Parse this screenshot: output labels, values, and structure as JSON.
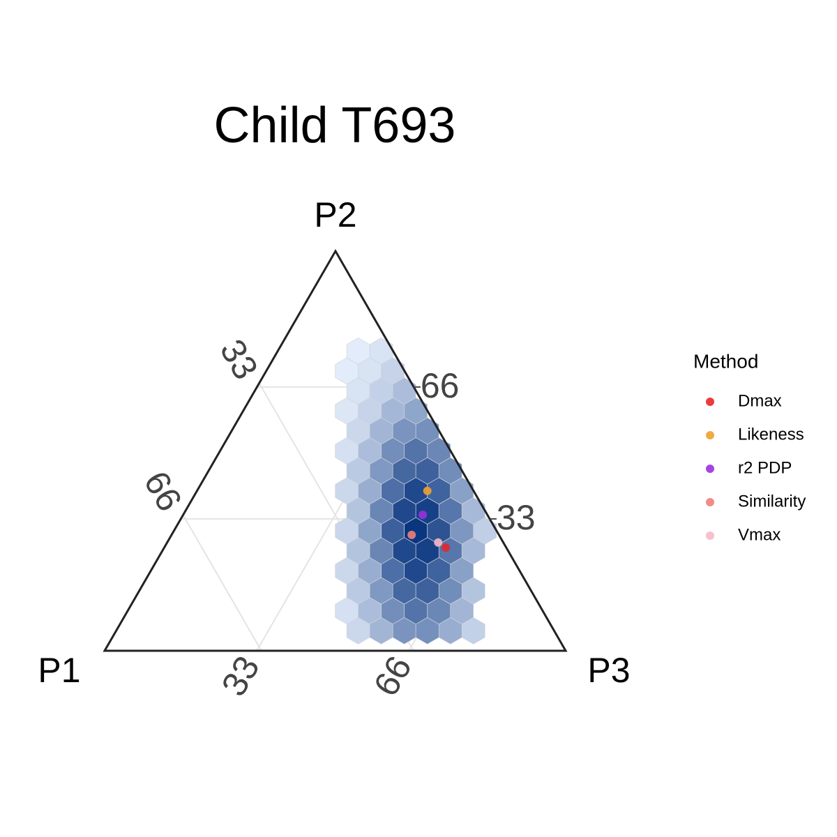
{
  "chart_data": {
    "type": "ternary",
    "title": "Child T693",
    "vertex_labels": [
      "P1",
      "P2",
      "P3"
    ],
    "p1ticks": [
      33,
      66
    ],
    "p2ticks": [
      33,
      66
    ],
    "p3ticks": [
      33,
      66
    ],
    "grid": true,
    "legend_title": "Method",
    "legend_position": "right",
    "hexbins": {
      "p2": [
        5,
        5,
        5,
        5,
        5,
        5,
        10,
        10,
        10,
        10,
        10,
        10,
        15,
        15,
        15,
        15,
        15,
        15,
        20,
        20,
        20,
        20,
        20,
        20,
        25,
        25,
        25,
        25,
        25,
        25,
        30,
        30,
        30,
        30,
        30,
        30,
        30,
        35,
        35,
        35,
        35,
        35,
        35,
        40,
        40,
        40,
        40,
        40,
        40,
        45,
        45,
        45,
        45,
        45,
        50,
        50,
        50,
        50,
        50,
        55,
        55,
        55,
        55,
        60,
        60,
        60,
        60,
        65,
        65,
        65,
        70,
        70,
        70,
        75,
        75
      ],
      "p3": [
        52.5,
        57.5,
        62.5,
        67.5,
        72.5,
        77.5,
        47.5,
        52.5,
        57.5,
        62.5,
        67.5,
        72.5,
        47.5,
        52.5,
        57.5,
        62.5,
        67.5,
        72.5,
        42.5,
        47.5,
        52.5,
        57.5,
        62.5,
        67.5,
        42.5,
        47.5,
        52.5,
        57.5,
        62.5,
        67.5,
        37.5,
        42.5,
        47.5,
        52.5,
        57.5,
        62.5,
        67.5,
        37.5,
        42.5,
        47.5,
        52.5,
        57.5,
        62.5,
        32.5,
        37.5,
        42.5,
        47.5,
        52.5,
        57.5,
        32.5,
        37.5,
        42.5,
        47.5,
        52.5,
        27.5,
        32.5,
        37.5,
        42.5,
        47.5,
        27.5,
        32.5,
        37.5,
        42.5,
        22.5,
        27.5,
        32.5,
        37.5,
        22.5,
        27.5,
        32.5,
        17.5,
        22.5,
        27.5,
        17.5,
        22.5
      ],
      "count": [
        8,
        24,
        42,
        44,
        28,
        11,
        5,
        20,
        45,
        61,
        49,
        24,
        14,
        39,
        68,
        72,
        46,
        17,
        8,
        28,
        64,
        88,
        71,
        35,
        17,
        50,
        88,
        93,
        59,
        22,
        9,
        32,
        73,
        100,
        81,
        40,
        12,
        17,
        50,
        88,
        93,
        59,
        22,
        8,
        28,
        64,
        88,
        71,
        35,
        14,
        39,
        68,
        72,
        46,
        5,
        20,
        45,
        61,
        49,
        8,
        24,
        42,
        44,
        3,
        10,
        23,
        32,
        4,
        11,
        20,
        1,
        4,
        10,
        1,
        4
      ],
      "color_low": "#e9f1fd",
      "color_high": "#0a3680"
    },
    "series": [
      {
        "name": "Dmax",
        "color": "#e8262a",
        "values": [
          13.1,
          25.8,
          61.1
        ]
      },
      {
        "name": "Likeness",
        "color": "#f0a030",
        "values": [
          10.0,
          40.0,
          50.0
        ]
      },
      {
        "name": "r2 PDP",
        "color": "#9b30e0",
        "values": [
          14.0,
          34.0,
          52.0
        ]
      },
      {
        "name": "Similarity",
        "color": "#f08078",
        "values": [
          18.9,
          29.0,
          52.1
        ]
      },
      {
        "name": "Vmax",
        "color": "#f8b8c8",
        "values": [
          14.1,
          27.1,
          58.8
        ]
      }
    ]
  }
}
